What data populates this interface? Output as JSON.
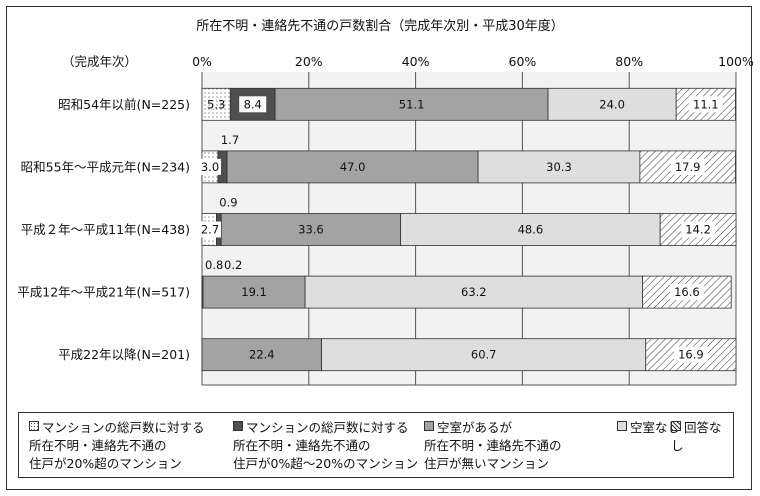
{
  "chart_data": {
    "type": "bar",
    "orientation": "horizontal",
    "stacked": true,
    "title": "所在不明・連絡先不通の戸数割合（完成年次別・平成30年度）",
    "category_axis_label": "（完成年次）",
    "xlim": [
      0,
      100
    ],
    "tick_labels": [
      "0%",
      "20%",
      "40%",
      "60%",
      "80%",
      "100%"
    ],
    "grid": true,
    "legend_position": "bottom",
    "categories": [
      "昭和54年以前(N=225)",
      "昭和55年～平成元年(N=234)",
      "平成２年～平成11年(N=438)",
      "平成12年～平成21年(N=517)",
      "平成22年以降(N=201)"
    ],
    "series": [
      {
        "name": "マンションの総戸数に対する\n所在不明・連絡先不通の\n住戸が20%超のマンション",
        "values": [
          5.3,
          3.0,
          2.7,
          0.0,
          0.0
        ],
        "labels": [
          "5.3",
          "3.0",
          "2.7",
          "",
          ""
        ],
        "color": "#ffffff",
        "pattern": "dots"
      },
      {
        "name": "マンションの総戸数に対する\n所在不明・連絡先不通の\n住戸が0%超～20%のマンション",
        "values": [
          8.4,
          1.7,
          0.9,
          0.2,
          0.0
        ],
        "labels": [
          "8.4",
          "1.7",
          "0.9",
          "",
          ""
        ],
        "color": "#4f4f4f",
        "pattern": "solid"
      },
      {
        "name": "空室があるが\n所在不明・連絡先不通の\n住戸が無いマンション",
        "values": [
          51.1,
          47.0,
          33.6,
          19.1,
          22.4
        ],
        "labels": [
          "51.1",
          "47.0",
          "33.6",
          "19.1",
          "22.4"
        ],
        "color": "#a3a3a3",
        "pattern": "solid"
      },
      {
        "name": "空室なし",
        "values": [
          24.0,
          30.3,
          48.6,
          63.2,
          60.7
        ],
        "labels": [
          "24.0",
          "30.3",
          "48.6",
          "63.2",
          "60.7"
        ],
        "color": "#dedede",
        "pattern": "solid"
      },
      {
        "name": "回答なし",
        "values": [
          11.1,
          17.9,
          14.2,
          16.6,
          16.9
        ],
        "labels": [
          "11.1",
          "17.9",
          "14.2",
          "16.6",
          "16.9"
        ],
        "color": "#ffffff",
        "pattern": "hatch"
      }
    ],
    "extra_labels": [
      "0.8",
      "0.2"
    ]
  }
}
